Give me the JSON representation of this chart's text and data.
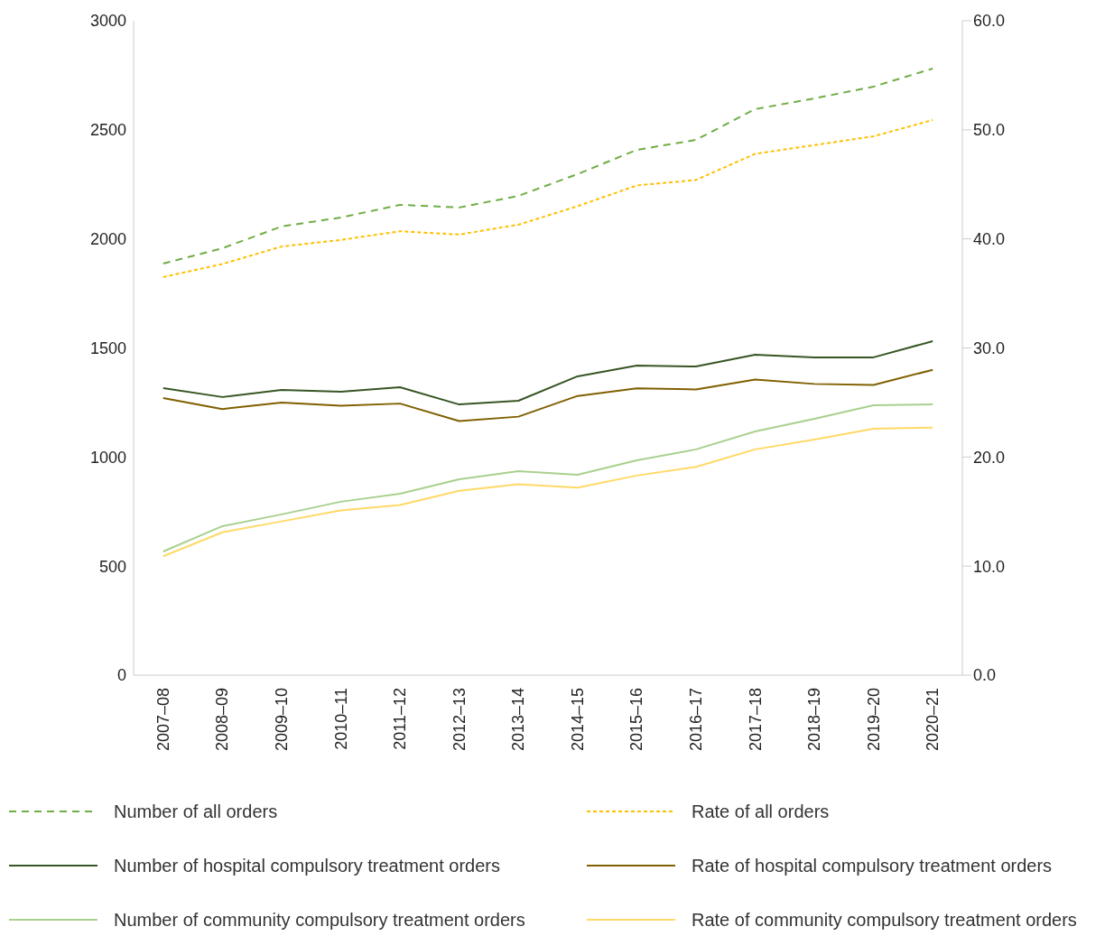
{
  "chart_data": {
    "type": "line",
    "categories": [
      "2007–08",
      "2008–09",
      "2009–10",
      "2010–11",
      "2011–12",
      "2012–13",
      "2013–14",
      "2014–15",
      "2015–16",
      "2016–17",
      "2017–18",
      "2018–19",
      "2019–20",
      "2020–21"
    ],
    "series": [
      {
        "name": "Number of all orders",
        "color": "#70ad47",
        "line_style": "dashed",
        "values": [
          1887,
          1957,
          2057,
          2098,
          2156,
          2144,
          2197,
          2297,
          2408,
          2454,
          2595,
          2644,
          2698,
          2781
        ]
      },
      {
        "name": "Rate of all orders",
        "color": "#ffc000",
        "line_style": "dotted",
        "axis": "y2",
        "values": [
          36.5,
          37.7,
          39.3,
          39.9,
          40.7,
          40.4,
          41.3,
          43.0,
          44.9,
          45.4,
          47.8,
          48.6,
          49.4,
          50.9
        ]
      },
      {
        "name": "Number of hospital compulsory treatment orders",
        "color": "#375623",
        "line_style": "solid",
        "values": [
          1316,
          1275,
          1308,
          1299,
          1320,
          1241,
          1258,
          1370,
          1419,
          1415,
          1469,
          1457,
          1457,
          1531
        ]
      },
      {
        "name": "Rate of hospital compulsory treatment orders",
        "color": "#7f6000",
        "line_style": "solid",
        "axis": "y2",
        "values": [
          25.4,
          24.4,
          25.0,
          24.7,
          24.9,
          23.3,
          23.7,
          25.6,
          26.3,
          26.2,
          27.1,
          26.7,
          26.6,
          28.0
        ]
      },
      {
        "name": "Number of community compulsory treatment orders",
        "color": "#a9d08e",
        "line_style": "solid",
        "values": [
          567,
          683,
          737,
          795,
          832,
          898,
          935,
          919,
          985,
          1035,
          1117,
          1175,
          1237,
          1241
        ]
      },
      {
        "name": "Rate of community compulsory treatment orders",
        "color": "#ffd966",
        "line_style": "solid",
        "axis": "y2",
        "values": [
          10.9,
          13.1,
          14.1,
          15.1,
          15.6,
          16.9,
          17.5,
          17.2,
          18.3,
          19.1,
          20.7,
          21.6,
          22.6,
          22.7
        ]
      }
    ],
    "ylim": [
      0,
      3000
    ],
    "yticks": [
      0,
      500,
      1000,
      1500,
      2000,
      2500,
      3000
    ],
    "y2lim": [
      0,
      60
    ],
    "y2ticks": [
      {
        "value": 0,
        "label": "0.0"
      },
      {
        "value": 10,
        "label": "10.0"
      },
      {
        "value": 20,
        "label": "20.0"
      },
      {
        "value": 30,
        "label": "30.0"
      },
      {
        "value": 40,
        "label": "40.0"
      },
      {
        "value": 50,
        "label": "50.0"
      },
      {
        "value": 60,
        "label": "60.0"
      }
    ],
    "grid": false,
    "legend": "bottom",
    "marker": "none"
  }
}
